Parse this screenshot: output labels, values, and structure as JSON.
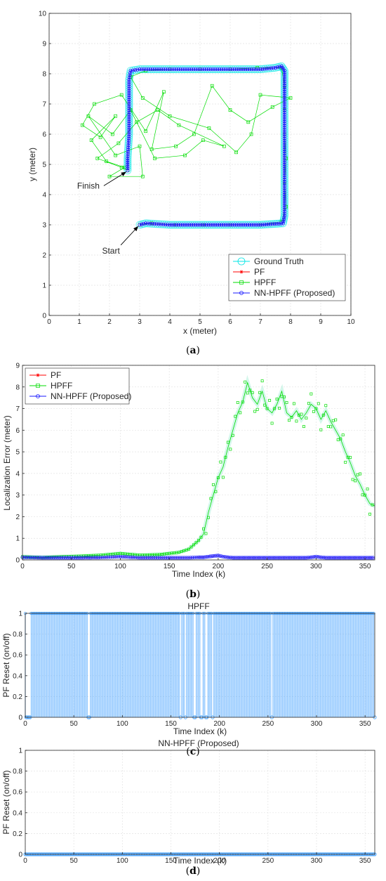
{
  "chart_data": [
    {
      "panel": "a",
      "type": "line",
      "caption": "(a)",
      "xlabel": "x (meter)",
      "ylabel": "y (meter)",
      "xlim": [
        0,
        10
      ],
      "ylim": [
        0,
        10
      ],
      "xticks": [
        "0",
        "1",
        "2",
        "3",
        "4",
        "5",
        "6",
        "7",
        "8",
        "9",
        "10"
      ],
      "yticks": [
        "0",
        "1",
        "2",
        "3",
        "4",
        "5",
        "6",
        "7",
        "8",
        "9",
        "10"
      ],
      "grid": true,
      "legend_position": "bottom-right",
      "annotations": [
        {
          "text": "Start",
          "target": [
            3.0,
            3.0
          ],
          "text_at": [
            2.05,
            2.05
          ]
        },
        {
          "text": "Finish",
          "target": [
            2.6,
            4.8
          ],
          "text_at": [
            1.3,
            4.2
          ]
        }
      ],
      "route": [
        [
          3.0,
          3.0
        ],
        [
          3.2,
          3.05
        ],
        [
          4.0,
          3.0
        ],
        [
          5.0,
          3.0
        ],
        [
          6.0,
          3.0
        ],
        [
          7.0,
          3.0
        ],
        [
          7.75,
          3.05
        ],
        [
          7.8,
          3.3
        ],
        [
          7.8,
          4.0
        ],
        [
          7.8,
          5.0
        ],
        [
          7.8,
          6.0
        ],
        [
          7.8,
          7.0
        ],
        [
          7.8,
          8.1
        ],
        [
          7.7,
          8.25
        ],
        [
          7.5,
          8.2
        ],
        [
          7.0,
          8.15
        ],
        [
          6.0,
          8.15
        ],
        [
          5.0,
          8.15
        ],
        [
          4.0,
          8.15
        ],
        [
          3.0,
          8.15
        ],
        [
          2.7,
          8.1
        ],
        [
          2.65,
          7.8
        ],
        [
          2.65,
          7.0
        ],
        [
          2.65,
          6.0
        ],
        [
          2.6,
          5.2
        ],
        [
          2.6,
          4.8
        ]
      ],
      "series": [
        {
          "name": "Ground Truth",
          "color": "#00e5e5",
          "marker": "circle"
        },
        {
          "name": "PF",
          "color": "#ff0000",
          "marker": "star"
        },
        {
          "name": "HPFF",
          "color": "#00dd00",
          "marker": "square",
          "points": [
            [
              3.0,
              3.0
            ],
            [
              3.4,
              3.05
            ],
            [
              4.2,
              3.0
            ],
            [
              5.1,
              3.0
            ],
            [
              6.0,
              3.0
            ],
            [
              7.0,
              3.0
            ],
            [
              7.7,
              3.1
            ],
            [
              7.85,
              3.6
            ],
            [
              7.8,
              4.4
            ],
            [
              7.85,
              5.2
            ],
            [
              7.8,
              6.0
            ],
            [
              7.8,
              6.8
            ],
            [
              7.8,
              7.6
            ],
            [
              7.7,
              8.2
            ],
            [
              6.9,
              8.2
            ],
            [
              6.0,
              8.15
            ],
            [
              5.0,
              8.15
            ],
            [
              4.0,
              8.15
            ],
            [
              3.2,
              8.1
            ],
            [
              2.7,
              7.9
            ],
            [
              3.1,
              7.2
            ],
            [
              4.0,
              6.6
            ],
            [
              5.3,
              6.2
            ],
            [
              6.2,
              5.4
            ],
            [
              6.7,
              6.0
            ],
            [
              7.0,
              7.3
            ],
            [
              8.0,
              7.2
            ],
            [
              7.4,
              6.9
            ],
            [
              6.6,
              6.4
            ],
            [
              6.0,
              6.8
            ],
            [
              5.4,
              7.6
            ],
            [
              4.8,
              6.0
            ],
            [
              4.2,
              5.6
            ],
            [
              3.4,
              5.5
            ],
            [
              3.8,
              7.4
            ],
            [
              3.2,
              6.1
            ],
            [
              2.4,
              7.3
            ],
            [
              1.5,
              7.0
            ],
            [
              1.1,
              6.3
            ],
            [
              1.7,
              5.9
            ],
            [
              2.2,
              6.6
            ],
            [
              1.4,
              5.8
            ],
            [
              1.9,
              5.1
            ],
            [
              2.5,
              4.9
            ],
            [
              2.0,
              4.6
            ],
            [
              3.1,
              4.6
            ],
            [
              3.0,
              5.6
            ],
            [
              2.2,
              5.3
            ],
            [
              1.3,
              6.6
            ],
            [
              2.1,
              6.0
            ],
            [
              2.7,
              6.8
            ],
            [
              3.5,
              5.2
            ],
            [
              4.5,
              5.3
            ],
            [
              5.1,
              5.8
            ],
            [
              5.8,
              5.6
            ],
            [
              4.3,
              6.3
            ],
            [
              3.6,
              6.8
            ],
            [
              2.9,
              6.4
            ],
            [
              2.3,
              5.7
            ],
            [
              1.6,
              5.2
            ],
            [
              2.4,
              4.9
            ],
            [
              2.6,
              4.8
            ]
          ]
        },
        {
          "name": "NN-HPFF (Proposed)",
          "color": "#1a1aff",
          "marker": "circle"
        }
      ]
    },
    {
      "panel": "b",
      "type": "line",
      "caption": "(b)",
      "xlabel": "Time Index (k)",
      "ylabel": "Localization Error (meter)",
      "xlim": [
        0,
        360
      ],
      "ylim": [
        0,
        9
      ],
      "xticks": [
        "0",
        "50",
        "100",
        "150",
        "200",
        "250",
        "300",
        "350"
      ],
      "yticks": [
        "0",
        "1",
        "2",
        "3",
        "4",
        "5",
        "6",
        "7",
        "8",
        "9"
      ],
      "grid": true,
      "legend_position": "top-left",
      "x": [
        0,
        20,
        40,
        60,
        80,
        100,
        120,
        140,
        160,
        170,
        180,
        185,
        190,
        195,
        200,
        205,
        210,
        215,
        220,
        225,
        230,
        235,
        240,
        245,
        250,
        255,
        260,
        265,
        270,
        275,
        280,
        285,
        290,
        295,
        300,
        305,
        310,
        315,
        320,
        325,
        330,
        335,
        340,
        345,
        350,
        355,
        360
      ],
      "series": [
        {
          "name": "PF",
          "color": "#ff0000",
          "marker": "star",
          "values": [
            0.12,
            0.1,
            0.1,
            0.1,
            0.11,
            0.15,
            0.1,
            0.1,
            0.1,
            0.1,
            0.12,
            0.12,
            0.15,
            0.18,
            0.2,
            0.15,
            0.12,
            0.1,
            0.1,
            0.1,
            0.1,
            0.1,
            0.1,
            0.1,
            0.1,
            0.1,
            0.1,
            0.1,
            0.1,
            0.1,
            0.1,
            0.1,
            0.1,
            0.12,
            0.15,
            0.12,
            0.1,
            0.1,
            0.1,
            0.1,
            0.1,
            0.1,
            0.1,
            0.1,
            0.1,
            0.1,
            0.1
          ]
        },
        {
          "name": "HPFF",
          "color": "#00dd00",
          "marker": "square",
          "values": [
            0.15,
            0.12,
            0.15,
            0.18,
            0.22,
            0.3,
            0.22,
            0.25,
            0.35,
            0.5,
            0.9,
            1.2,
            2.2,
            3.0,
            3.8,
            4.3,
            5.2,
            6.0,
            6.8,
            7.3,
            8.2,
            7.5,
            7.2,
            7.8,
            7.0,
            6.8,
            7.2,
            7.8,
            6.8,
            6.6,
            6.9,
            6.5,
            6.8,
            7.2,
            7.0,
            6.5,
            6.9,
            6.4,
            6.0,
            5.6,
            5.0,
            4.5,
            3.9,
            3.5,
            3.0,
            2.6,
            2.5
          ]
        },
        {
          "name": "NN-HPFF (Proposed)",
          "color": "#1a1aff",
          "marker": "circle",
          "values": [
            0.12,
            0.1,
            0.1,
            0.1,
            0.11,
            0.15,
            0.1,
            0.1,
            0.1,
            0.1,
            0.12,
            0.12,
            0.15,
            0.18,
            0.2,
            0.15,
            0.12,
            0.1,
            0.1,
            0.1,
            0.1,
            0.1,
            0.1,
            0.1,
            0.1,
            0.1,
            0.1,
            0.1,
            0.1,
            0.1,
            0.1,
            0.1,
            0.1,
            0.12,
            0.15,
            0.12,
            0.1,
            0.1,
            0.1,
            0.1,
            0.1,
            0.1,
            0.1,
            0.1,
            0.1,
            0.1,
            0.1
          ]
        }
      ]
    },
    {
      "panel": "c",
      "type": "bar",
      "caption": "(c)",
      "title": "HPFF",
      "xlabel": "Time Index (k)",
      "ylabel": "PF Reset (on/off)",
      "xlim": [
        0,
        360
      ],
      "ylim": [
        0,
        1
      ],
      "xticks": [
        "0",
        "50",
        "100",
        "150",
        "200",
        "250",
        "300",
        "350"
      ],
      "yticks": [
        "0",
        "0.2",
        "0.4",
        "0.6",
        "0.8",
        "1"
      ],
      "grid": true,
      "default_value": 1,
      "off_indices": [
        1,
        2,
        3,
        4,
        5,
        65,
        66,
        160,
        165,
        174,
        175,
        181,
        182,
        186,
        187,
        193,
        254,
        360
      ],
      "color": "#4da6ff"
    },
    {
      "panel": "d",
      "type": "scatter",
      "caption": "(d)",
      "title": "NN-HPFF (Proposed)",
      "xlabel": "Time Index (k)",
      "ylabel": "PF Reset (on/off)",
      "xlim": [
        0,
        360
      ],
      "ylim": [
        0,
        1
      ],
      "xticks": [
        "0",
        "50",
        "100",
        "150",
        "200",
        "250",
        "300",
        "350"
      ],
      "yticks": [
        "0",
        "0.2",
        "0.4",
        "0.6",
        "0.8",
        "1"
      ],
      "grid": true,
      "default_value": 0,
      "color": "#4da6ff"
    }
  ]
}
